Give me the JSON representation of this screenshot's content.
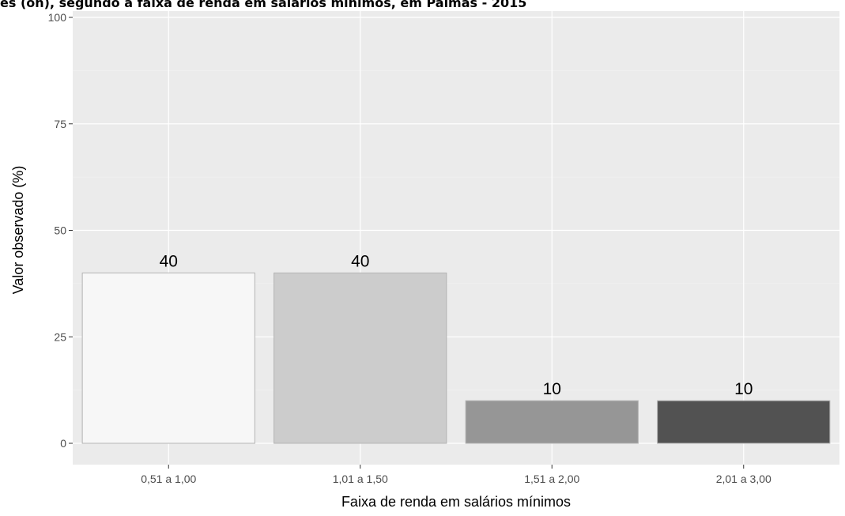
{
  "title": "es (on), segundo a faixa de renda em salários mínimos, em Palmas - 2015",
  "chart_data": {
    "type": "bar",
    "title": "",
    "xlabel": "Faixa de renda em salários mínimos",
    "ylabel": "Valor observado (%)",
    "categories": [
      "0,51 a 1,00",
      "1,01 a 1,50",
      "1,51 a 2,00",
      "2,01 a 3,00"
    ],
    "values": [
      40,
      40,
      10,
      10
    ],
    "data_labels": [
      "40",
      "40",
      "10",
      "10"
    ],
    "ylim": [
      0,
      100
    ],
    "yticks": [
      0,
      25,
      50,
      75,
      100
    ],
    "ytick_labels": [
      "0",
      "25",
      "50",
      "75",
      "100"
    ],
    "grid": true,
    "legend": "none",
    "colors": {
      "panel_background": "#ebebeb",
      "grid_major": "#ffffff",
      "grid_minor": "#f5f5f5",
      "bar_fills": [
        "#f7f7f7",
        "#cccccc",
        "#969696",
        "#525252"
      ],
      "bar_outline": "#b3b3b3",
      "tick_label": "#4d4d4d",
      "axis_title": "#000000"
    }
  }
}
